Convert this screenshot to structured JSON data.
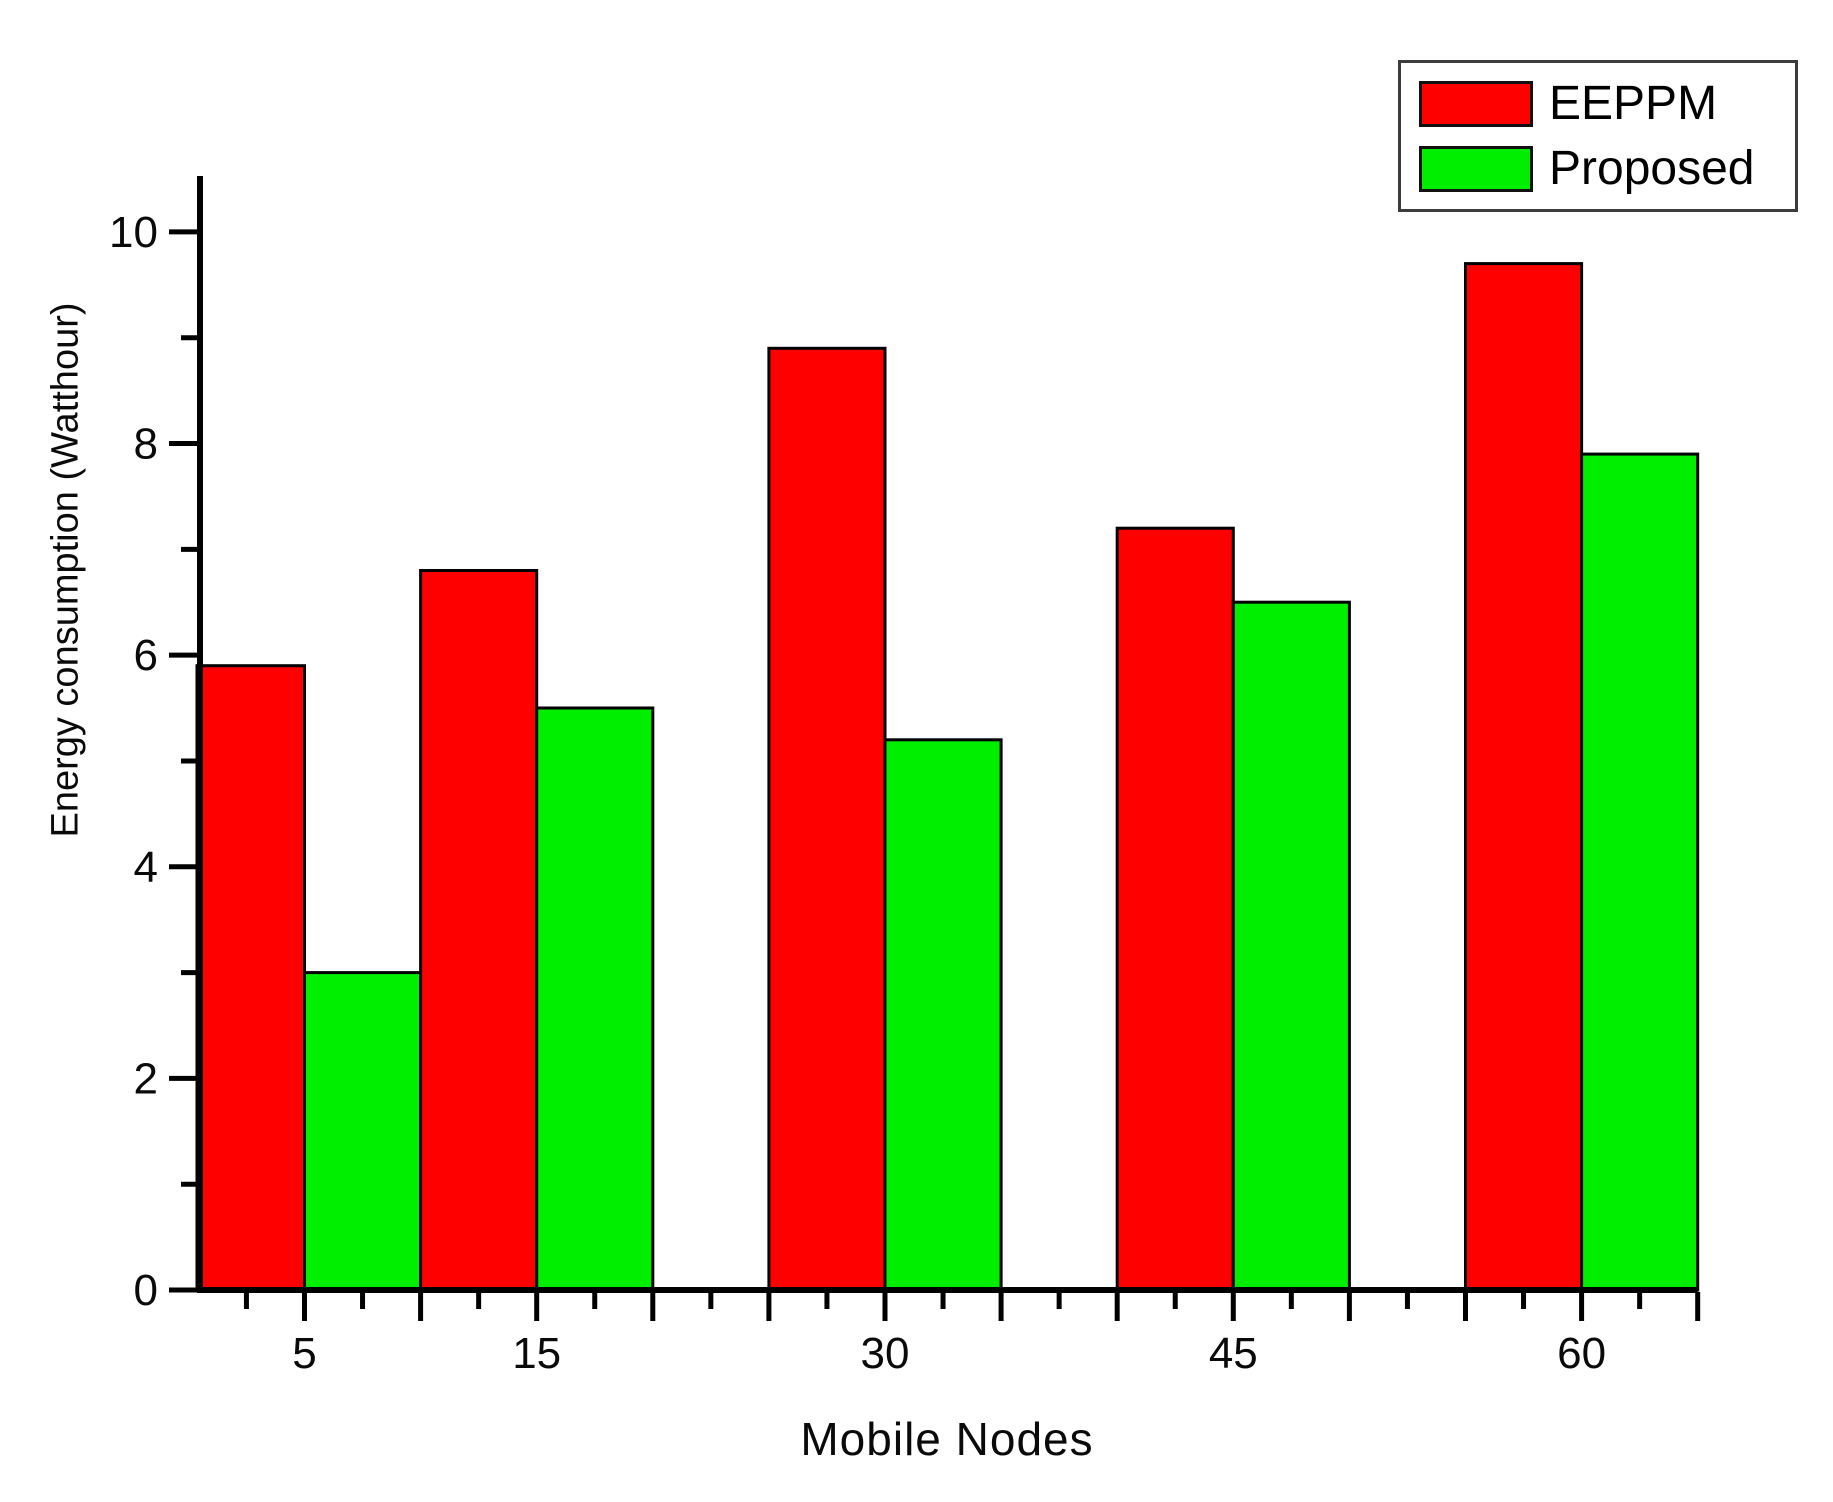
{
  "chart_data": {
    "type": "bar",
    "title": "",
    "xlabel": "Mobile Nodes",
    "ylabel": "Energy consumption (Watthour)",
    "categories": [
      5,
      15,
      30,
      45,
      60
    ],
    "series": [
      {
        "name": "EEPPM",
        "color": "#fe0000",
        "values": [
          5.9,
          6.8,
          8.9,
          7.2,
          9.7
        ]
      },
      {
        "name": "Proposed",
        "color": "#00ee00",
        "values": [
          3.0,
          5.5,
          5.2,
          6.5,
          7.9
        ]
      }
    ],
    "bar_width_units": 5,
    "bar_edge_color": "#000000",
    "x_axis": {
      "min": 0.5,
      "max": 65,
      "major_tick_start": 5,
      "major_tick_step": 5,
      "minor_tick_start": 2.5,
      "minor_tick_step": 5,
      "labeled_ticks": [
        5,
        15,
        30,
        45,
        60
      ]
    },
    "y_axis": {
      "min": 0,
      "max": 10.5,
      "major_ticks": [
        0,
        2,
        4,
        6,
        8,
        10
      ],
      "minor_ticks": [
        1,
        3,
        5,
        7,
        9
      ]
    },
    "grid": false,
    "legend_position": "top-right",
    "axis_color": "#000000",
    "text_color": "#0a0a0a"
  }
}
